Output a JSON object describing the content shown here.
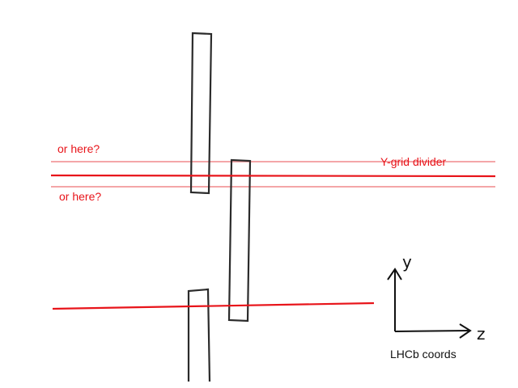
{
  "colors": {
    "divider": "#e8141a",
    "alt_divider": "#f4a6a8",
    "outline": "#2b2b2b",
    "axes": "#111111"
  },
  "labels": {
    "alt_above": "or here?",
    "alt_below": "or here?",
    "divider": "Y-grid divider",
    "axis_y": "y",
    "axis_z": "z",
    "coords": "LHCb coords"
  }
}
